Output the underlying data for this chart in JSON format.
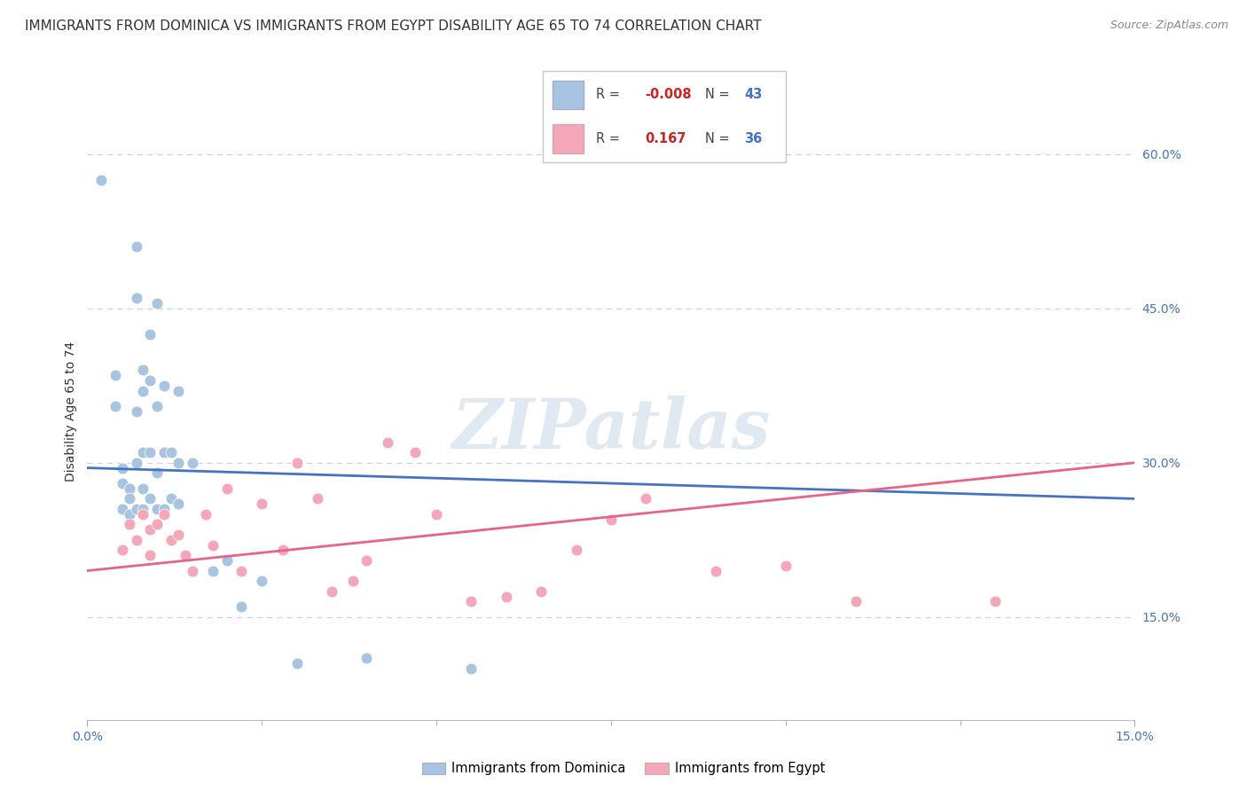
{
  "title": "IMMIGRANTS FROM DOMINICA VS IMMIGRANTS FROM EGYPT DISABILITY AGE 65 TO 74 CORRELATION CHART",
  "source": "Source: ZipAtlas.com",
  "ylabel": "Disability Age 65 to 74",
  "ytick_labels": [
    "15.0%",
    "30.0%",
    "45.0%",
    "60.0%"
  ],
  "ytick_vals": [
    0.15,
    0.3,
    0.45,
    0.6
  ],
  "xmin": 0.0,
  "xmax": 0.15,
  "ymin": 0.05,
  "ymax": 0.65,
  "dominica_color": "#a8c4e0",
  "egypt_color": "#f4a7b9",
  "dominica_line_color": "#4472c4",
  "egypt_line_color": "#e8638a",
  "r_dominica": -0.008,
  "n_dominica": 43,
  "r_egypt": 0.167,
  "n_egypt": 36,
  "dominica_x": [
    0.002,
    0.004,
    0.004,
    0.005,
    0.005,
    0.005,
    0.006,
    0.006,
    0.006,
    0.007,
    0.007,
    0.007,
    0.007,
    0.007,
    0.008,
    0.008,
    0.008,
    0.008,
    0.008,
    0.009,
    0.009,
    0.009,
    0.009,
    0.01,
    0.01,
    0.01,
    0.01,
    0.011,
    0.011,
    0.011,
    0.012,
    0.012,
    0.013,
    0.013,
    0.013,
    0.015,
    0.018,
    0.02,
    0.022,
    0.025,
    0.03,
    0.04,
    0.055
  ],
  "dominica_y": [
    0.575,
    0.385,
    0.355,
    0.295,
    0.28,
    0.255,
    0.275,
    0.265,
    0.25,
    0.51,
    0.46,
    0.35,
    0.3,
    0.255,
    0.39,
    0.37,
    0.31,
    0.275,
    0.255,
    0.425,
    0.38,
    0.31,
    0.265,
    0.455,
    0.355,
    0.29,
    0.255,
    0.375,
    0.31,
    0.255,
    0.31,
    0.265,
    0.37,
    0.3,
    0.26,
    0.3,
    0.195,
    0.205,
    0.16,
    0.185,
    0.105,
    0.11,
    0.1
  ],
  "egypt_x": [
    0.005,
    0.006,
    0.007,
    0.008,
    0.009,
    0.009,
    0.01,
    0.011,
    0.012,
    0.013,
    0.014,
    0.015,
    0.017,
    0.018,
    0.02,
    0.022,
    0.025,
    0.028,
    0.03,
    0.033,
    0.035,
    0.038,
    0.04,
    0.043,
    0.047,
    0.05,
    0.055,
    0.06,
    0.065,
    0.07,
    0.075,
    0.08,
    0.09,
    0.1,
    0.11,
    0.13
  ],
  "egypt_y": [
    0.215,
    0.24,
    0.225,
    0.25,
    0.235,
    0.21,
    0.24,
    0.25,
    0.225,
    0.23,
    0.21,
    0.195,
    0.25,
    0.22,
    0.275,
    0.195,
    0.26,
    0.215,
    0.3,
    0.265,
    0.175,
    0.185,
    0.205,
    0.32,
    0.31,
    0.25,
    0.165,
    0.17,
    0.175,
    0.215,
    0.245,
    0.265,
    0.195,
    0.2,
    0.165,
    0.165
  ],
  "watermark": "ZIPatlas",
  "background_color": "#ffffff",
  "grid_color": "#c8d4e8",
  "title_fontsize": 11,
  "axis_label_fontsize": 10,
  "tick_fontsize": 10,
  "source_fontsize": 9
}
